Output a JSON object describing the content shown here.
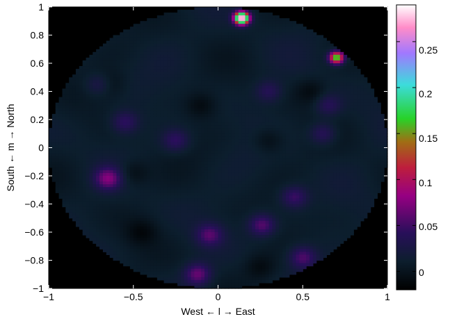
{
  "chart_data": {
    "type": "heatmap",
    "title": "",
    "xlabel": "West ← l → East",
    "ylabel": "South ← m → North",
    "xlim": [
      -1,
      1
    ],
    "ylim": [
      -1,
      1
    ],
    "x_ticks": [
      "−1",
      "−0.5",
      "0",
      "0.5",
      "1"
    ],
    "y_ticks": [
      "1",
      "0.8",
      "0.6",
      "0.4",
      "0.2",
      "0",
      "−0.2",
      "−0.4",
      "−0.6",
      "−0.8",
      "−1"
    ],
    "colorbar": {
      "range": [
        -0.02,
        0.29
      ],
      "ticks": [
        "0.25",
        "0.2",
        "0.15",
        "0.1",
        "0.05",
        "0"
      ]
    },
    "disk_radius": 1.0,
    "background_level": 0.01,
    "sources": [
      {
        "l": 0.14,
        "m": 0.92,
        "peak": 0.29
      },
      {
        "l": 0.7,
        "m": 0.64,
        "peak": 0.17
      },
      {
        "l": -0.65,
        "m": -0.22,
        "peak": 0.06
      },
      {
        "l": -0.12,
        "m": -0.9,
        "peak": 0.055
      },
      {
        "l": 0.26,
        "m": -0.55,
        "peak": 0.05
      },
      {
        "l": 0.5,
        "m": -0.78,
        "peak": 0.045
      },
      {
        "l": -0.05,
        "m": -0.62,
        "peak": 0.045
      },
      {
        "l": 0.45,
        "m": -0.35,
        "peak": 0.04
      },
      {
        "l": -0.55,
        "m": 0.18,
        "peak": 0.035
      },
      {
        "l": -0.25,
        "m": 0.05,
        "peak": 0.035
      },
      {
        "l": 0.62,
        "m": 0.1,
        "peak": 0.035
      },
      {
        "l": -0.7,
        "m": 0.45,
        "peak": 0.03
      },
      {
        "l": 0.65,
        "m": 0.3,
        "peak": 0.03
      },
      {
        "l": 0.3,
        "m": 0.4,
        "peak": 0.03
      }
    ],
    "dark_spots": [
      {
        "l": -0.65,
        "m": 0.45
      },
      {
        "l": -0.5,
        "m": -0.18
      },
      {
        "l": -0.45,
        "m": -0.6
      },
      {
        "l": 0.3,
        "m": 0.05
      },
      {
        "l": 0.55,
        "m": 0.4
      },
      {
        "l": 0.25,
        "m": -0.85
      },
      {
        "l": -0.1,
        "m": 0.3
      }
    ]
  }
}
